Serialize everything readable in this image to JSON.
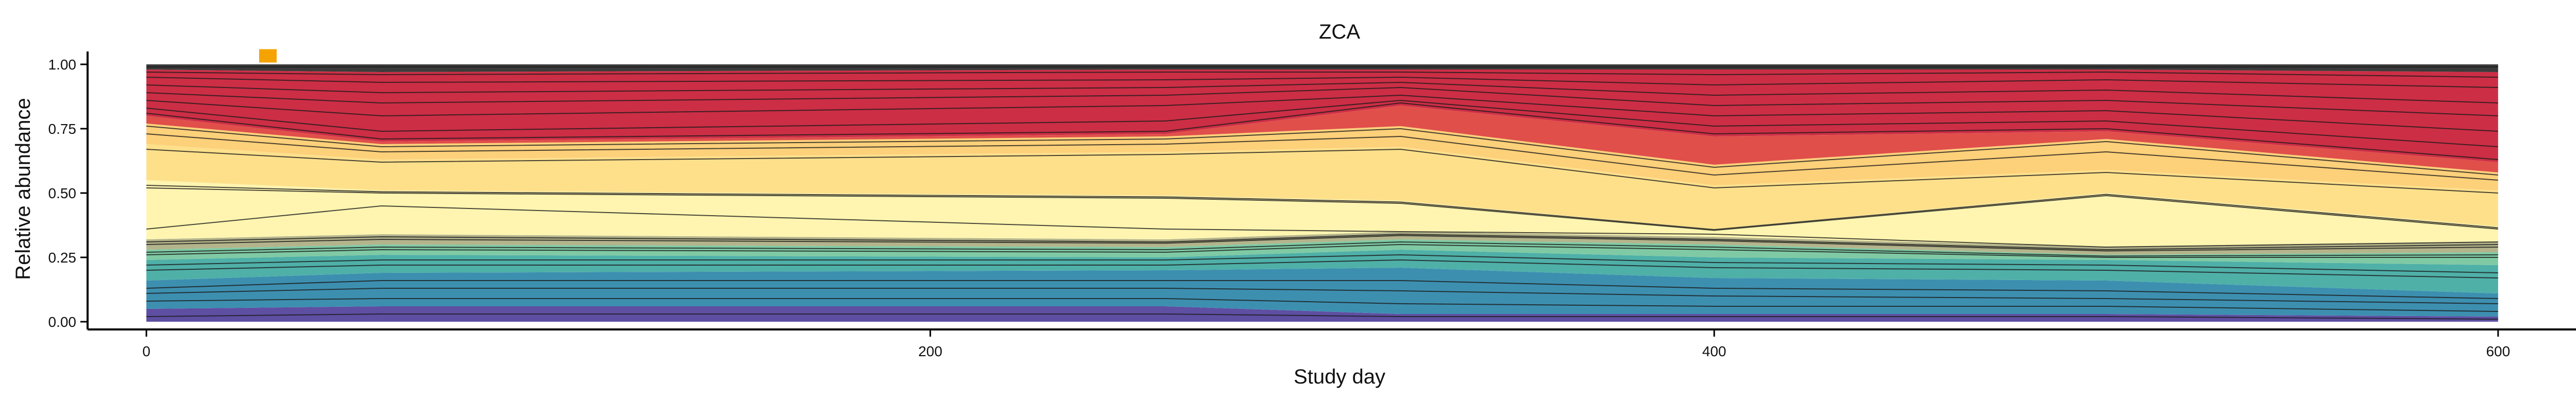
{
  "chart_data": {
    "type": "area",
    "title": "ZCA",
    "xlabel": "Study day",
    "ylabel": "Relative abundance",
    "xlim": [
      -15,
      625
    ],
    "ylim": [
      -0.03,
      1.05
    ],
    "x_ticks": [
      0,
      200,
      400,
      600
    ],
    "x_tick_labels": [
      "0",
      "200",
      "400",
      "600"
    ],
    "y_ticks": [
      0.0,
      0.25,
      0.5,
      0.75,
      1.0
    ],
    "y_tick_labels": [
      "0.00",
      "0.25",
      "0.50",
      "0.75",
      "1.00"
    ],
    "stacked": true,
    "x": [
      0,
      60,
      260,
      320,
      400,
      500,
      600
    ],
    "bands": [
      {
        "color": "#5e4fa2",
        "lower": [
          0.0,
          0.0,
          0.0,
          0.0,
          0.0,
          0.0,
          0.0
        ],
        "upper": [
          0.05,
          0.06,
          0.06,
          0.03,
          0.03,
          0.03,
          0.02
        ]
      },
      {
        "color": "#3d8fb0",
        "lower": [
          0.05,
          0.06,
          0.06,
          0.03,
          0.03,
          0.03,
          0.02
        ],
        "upper": [
          0.16,
          0.19,
          0.2,
          0.21,
          0.17,
          0.16,
          0.11
        ]
      },
      {
        "color": "#4fb0a8",
        "lower": [
          0.16,
          0.19,
          0.2,
          0.21,
          0.17,
          0.16,
          0.11
        ],
        "upper": [
          0.24,
          0.26,
          0.25,
          0.28,
          0.25,
          0.24,
          0.22
        ]
      },
      {
        "color": "#7fcaa4",
        "lower": [
          0.24,
          0.26,
          0.25,
          0.28,
          0.25,
          0.24,
          0.22
        ],
        "upper": [
          0.28,
          0.3,
          0.29,
          0.32,
          0.3,
          0.26,
          0.27
        ]
      },
      {
        "color": "#b4b48c",
        "lower": [
          0.28,
          0.3,
          0.29,
          0.32,
          0.3,
          0.26,
          0.27
        ],
        "upper": [
          0.32,
          0.34,
          0.32,
          0.35,
          0.33,
          0.29,
          0.31
        ]
      },
      {
        "color": "#fff5b0",
        "lower": [
          0.32,
          0.34,
          0.32,
          0.35,
          0.33,
          0.29,
          0.31
        ],
        "upper": [
          0.55,
          0.51,
          0.49,
          0.47,
          0.36,
          0.5,
          0.37
        ]
      },
      {
        "color": "#fee08b",
        "lower": [
          0.55,
          0.51,
          0.49,
          0.47,
          0.36,
          0.5,
          0.37
        ],
        "upper": [
          0.69,
          0.63,
          0.66,
          0.68,
          0.53,
          0.59,
          0.51
        ]
      },
      {
        "color": "#fdd07a",
        "lower": [
          0.69,
          0.63,
          0.66,
          0.68,
          0.53,
          0.59,
          0.51
        ],
        "upper": [
          0.77,
          0.69,
          0.72,
          0.76,
          0.61,
          0.71,
          0.58
        ]
      },
      {
        "color": "#e04f4a",
        "lower": [
          0.77,
          0.69,
          0.72,
          0.76,
          0.61,
          0.71,
          0.58
        ],
        "upper": [
          0.8,
          0.7,
          0.73,
          0.84,
          0.72,
          0.74,
          0.62
        ]
      },
      {
        "color": "#cc2e45",
        "lower": [
          0.8,
          0.7,
          0.73,
          0.84,
          0.72,
          0.74,
          0.62
        ],
        "upper": [
          0.98,
          0.97,
          0.98,
          0.98,
          0.98,
          0.98,
          0.97
        ]
      },
      {
        "color": "#3b3b3b",
        "lower": [
          0.98,
          0.97,
          0.98,
          0.98,
          0.98,
          0.98,
          0.97
        ],
        "upper": [
          1.0,
          1.0,
          1.0,
          1.0,
          1.0,
          1.0,
          1.0
        ]
      }
    ],
    "boundary_lines": [
      [
        0.02,
        0.03,
        0.03,
        0.02,
        0.02,
        0.02,
        0.01
      ],
      [
        0.08,
        0.09,
        0.09,
        0.07,
        0.06,
        0.06,
        0.04
      ],
      [
        0.11,
        0.13,
        0.13,
        0.12,
        0.1,
        0.09,
        0.07
      ],
      [
        0.13,
        0.16,
        0.16,
        0.16,
        0.13,
        0.12,
        0.09
      ],
      [
        0.2,
        0.22,
        0.22,
        0.24,
        0.21,
        0.2,
        0.17
      ],
      [
        0.22,
        0.24,
        0.24,
        0.26,
        0.23,
        0.22,
        0.19
      ],
      [
        0.26,
        0.28,
        0.27,
        0.3,
        0.28,
        0.25,
        0.25
      ],
      [
        0.27,
        0.29,
        0.28,
        0.31,
        0.29,
        0.255,
        0.26
      ],
      [
        0.3,
        0.32,
        0.305,
        0.335,
        0.315,
        0.275,
        0.29
      ],
      [
        0.31,
        0.33,
        0.31,
        0.34,
        0.32,
        0.28,
        0.3
      ],
      [
        0.36,
        0.45,
        0.36,
        0.35,
        0.34,
        0.29,
        0.31
      ],
      [
        0.52,
        0.5,
        0.48,
        0.46,
        0.355,
        0.49,
        0.36
      ],
      [
        0.53,
        0.505,
        0.485,
        0.465,
        0.358,
        0.495,
        0.365
      ],
      [
        0.67,
        0.62,
        0.65,
        0.67,
        0.52,
        0.58,
        0.5
      ],
      [
        0.73,
        0.66,
        0.69,
        0.72,
        0.57,
        0.66,
        0.55
      ],
      [
        0.76,
        0.68,
        0.71,
        0.75,
        0.6,
        0.7,
        0.57
      ],
      [
        0.81,
        0.71,
        0.74,
        0.85,
        0.73,
        0.75,
        0.63
      ],
      [
        0.83,
        0.74,
        0.78,
        0.86,
        0.76,
        0.78,
        0.68
      ],
      [
        0.86,
        0.8,
        0.84,
        0.88,
        0.8,
        0.82,
        0.74
      ],
      [
        0.89,
        0.85,
        0.88,
        0.91,
        0.84,
        0.86,
        0.8
      ],
      [
        0.92,
        0.89,
        0.91,
        0.93,
        0.88,
        0.9,
        0.85
      ],
      [
        0.95,
        0.93,
        0.94,
        0.95,
        0.92,
        0.94,
        0.91
      ],
      [
        0.97,
        0.96,
        0.97,
        0.97,
        0.96,
        0.97,
        0.95
      ],
      [
        0.99,
        0.99,
        0.99,
        0.99,
        0.99,
        0.99,
        0.99
      ]
    ],
    "marker": {
      "x": 31,
      "y": 1.025,
      "color": "#f5a300"
    },
    "grid": false,
    "legend": "none"
  }
}
